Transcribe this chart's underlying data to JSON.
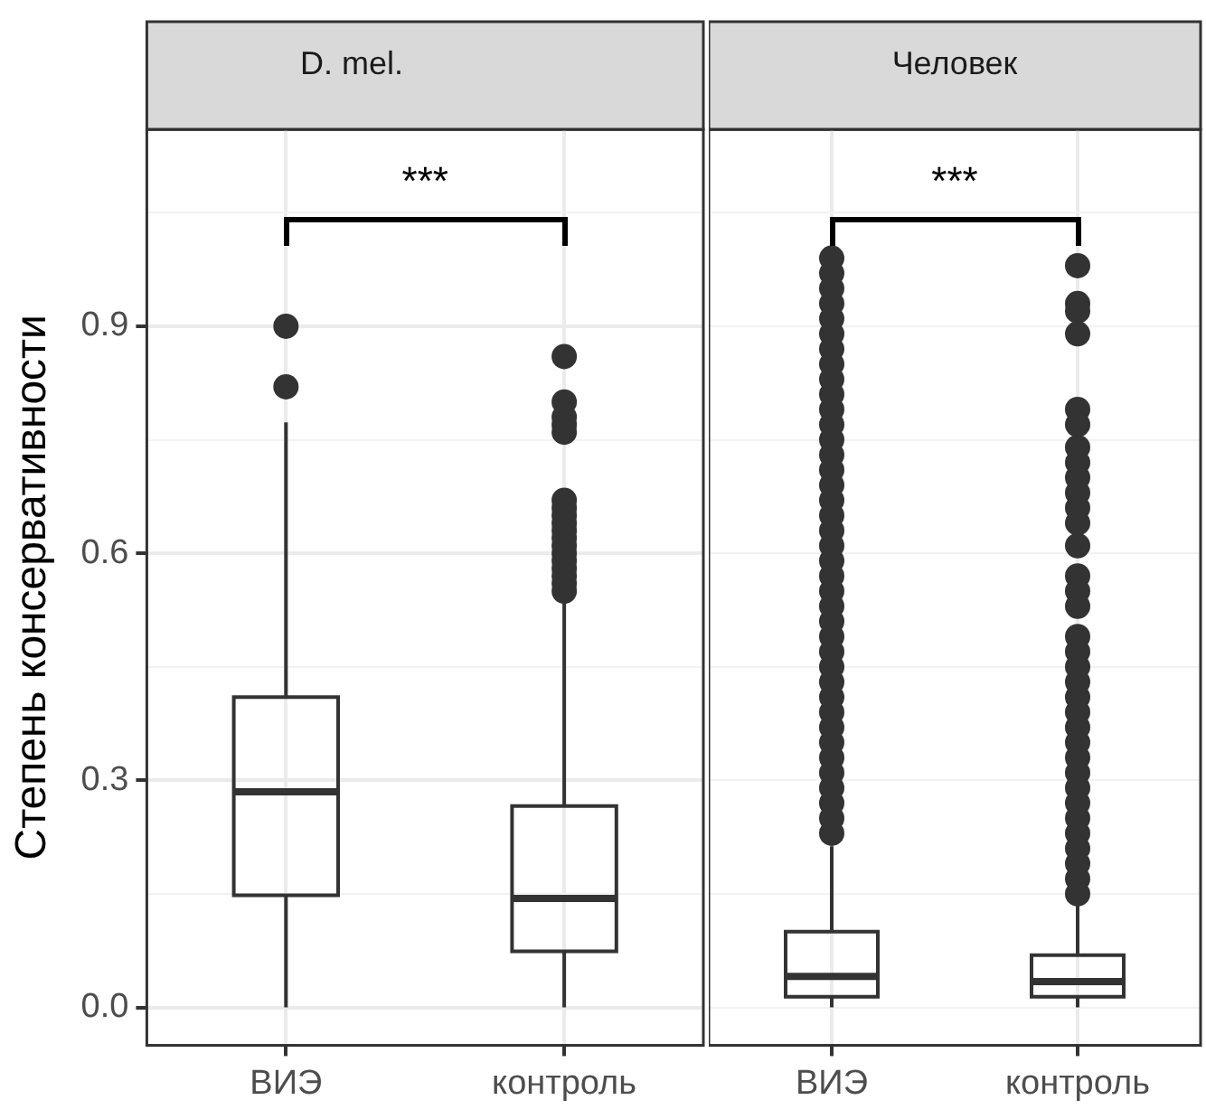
{
  "chart_data": [
    {
      "type": "box",
      "title": "D. mel.",
      "ylabel": "Степень консервативности",
      "categories": [
        "ВИЭ",
        "контроль"
      ],
      "color": "#333333",
      "boxes": [
        {
          "low": 0,
          "q1": 0.148,
          "median": 0.285,
          "q3": 0.41,
          "high": 0.773,
          "outliers": [
            0.9,
            0.82
          ]
        },
        {
          "low": 0,
          "q1": 0.074,
          "median": 0.144,
          "q3": 0.266,
          "high": 0.536,
          "outliers": [
            0.86,
            0.8,
            0.78,
            0.77,
            0.76,
            0.67,
            0.66,
            0.65,
            0.64,
            0.63,
            0.62,
            0.61,
            0.6,
            0.59,
            0.58,
            0.57,
            0.56,
            0.55
          ]
        }
      ],
      "ylim": [
        -0.05,
        1.16
      ],
      "yticks": [
        {
          "value": 0,
          "label": "0.0"
        },
        {
          "value": 0.15,
          "label": null
        },
        {
          "value": 0.3,
          "label": "0.3"
        },
        {
          "value": 0.45,
          "label": null
        },
        {
          "value": 0.6,
          "label": "0.6"
        },
        {
          "value": 0.75,
          "label": null
        },
        {
          "value": 0.9,
          "label": "0.9"
        },
        {
          "value": 1.05,
          "label": null
        }
      ],
      "grid": true,
      "annotations": [
        "***"
      ]
    },
    {
      "type": "box",
      "title": "Человек",
      "categories": [
        "ВИЭ",
        "контроль"
      ],
      "color": "#333333",
      "boxes": [
        {
          "low": 0,
          "q1": 0.014,
          "median": 0.041,
          "q3": 0.1,
          "high": 0.213,
          "outliers": [
            0.23,
            0.25,
            0.27,
            0.29,
            0.31,
            0.33,
            0.35,
            0.37,
            0.39,
            0.41,
            0.43,
            0.45,
            0.47,
            0.49,
            0.51,
            0.53,
            0.55,
            0.57,
            0.59,
            0.61,
            0.63,
            0.65,
            0.67,
            0.69,
            0.71,
            0.73,
            0.75,
            0.77,
            0.79,
            0.81,
            0.83,
            0.85,
            0.87,
            0.89,
            0.91,
            0.93,
            0.95,
            0.97,
            0.99
          ]
        },
        {
          "low": 0,
          "q1": 0.014,
          "median": 0.034,
          "q3": 0.069,
          "high": 0.136,
          "outliers": [
            0.98,
            0.93,
            0.92,
            0.89,
            0.79,
            0.77,
            0.74,
            0.72,
            0.7,
            0.68,
            0.66,
            0.64,
            0.61,
            0.57,
            0.55,
            0.53,
            0.49,
            0.47,
            0.45,
            0.43,
            0.41,
            0.39,
            0.37,
            0.35,
            0.33,
            0.31,
            0.29,
            0.27,
            0.25,
            0.23,
            0.21,
            0.19,
            0.17,
            0.15
          ]
        }
      ],
      "ylim": [
        -0.05,
        1.16
      ],
      "yticks": [
        {
          "value": 0,
          "label": null
        },
        {
          "value": 0.15,
          "label": null
        },
        {
          "value": 0.3,
          "label": null
        },
        {
          "value": 0.45,
          "label": null
        },
        {
          "value": 0.6,
          "label": null
        },
        {
          "value": 0.75,
          "label": null
        },
        {
          "value": 0.9,
          "label": null
        },
        {
          "value": 1.05,
          "label": null
        }
      ],
      "grid": true,
      "tick_labels": "x",
      "annotations": [
        "***"
      ]
    }
  ]
}
